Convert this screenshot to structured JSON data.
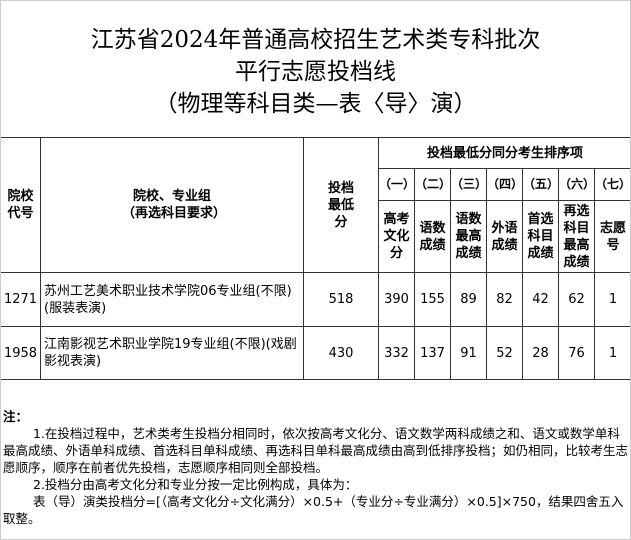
{
  "title": {
    "line1": "江苏省2024年普通高校招生艺术类专科批次",
    "line2": "平行志愿投档线",
    "line3": "（物理等科目类—表〈导〉演）"
  },
  "table": {
    "headers": {
      "code": "院校代号",
      "name": "院校、专业组（再选科目要求）",
      "min_score": "投档最低分",
      "rank_group": "投档最低分同分考生排序项",
      "rank_cols": [
        {
          "num": "（一）",
          "label": "高考文化分"
        },
        {
          "num": "（二）",
          "label": "语数成绩"
        },
        {
          "num": "（三）",
          "label": "语数最高成绩"
        },
        {
          "num": "（四）",
          "label": "外语成绩"
        },
        {
          "num": "（五）",
          "label": "首选科目成绩"
        },
        {
          "num": "（六）",
          "label": "再选科目最高成绩"
        },
        {
          "num": "（七）",
          "label": "志愿号"
        }
      ]
    },
    "rows": [
      {
        "code": "1271",
        "name": "苏州工艺美术职业技术学院06专业组(不限)(服装表演)",
        "min_score": "518",
        "ranks": [
          "390",
          "155",
          "89",
          "82",
          "42",
          "62",
          "1"
        ]
      },
      {
        "code": "1958",
        "name": "江南影视艺术职业学院19专业组(不限)(戏剧影视表演)",
        "min_score": "430",
        "ranks": [
          "332",
          "137",
          "91",
          "52",
          "28",
          "76",
          "1"
        ]
      }
    ]
  },
  "notes": {
    "heading": "注：",
    "items": [
      "1.在投档过程中，艺术类考生投档分相同时，依次按高考文化分、语文数学两科成绩之和、语文或数学单科最高成绩、外语单科成绩、首选科目单科成绩、再选科目单科最高成绩由高到低排序投档；如仍相同，比较考生志愿顺序，顺序在前者优先投档，志愿顺序相同则全部投档。",
      "2.投档分由高考文化分和专业分按一定比例构成，具体为：",
      "表（导）演类投档分=[（高考文化分÷文化满分）×0.5+（专业分÷专业满分）×0.5]×750，结果四舍五入取整。"
    ]
  }
}
